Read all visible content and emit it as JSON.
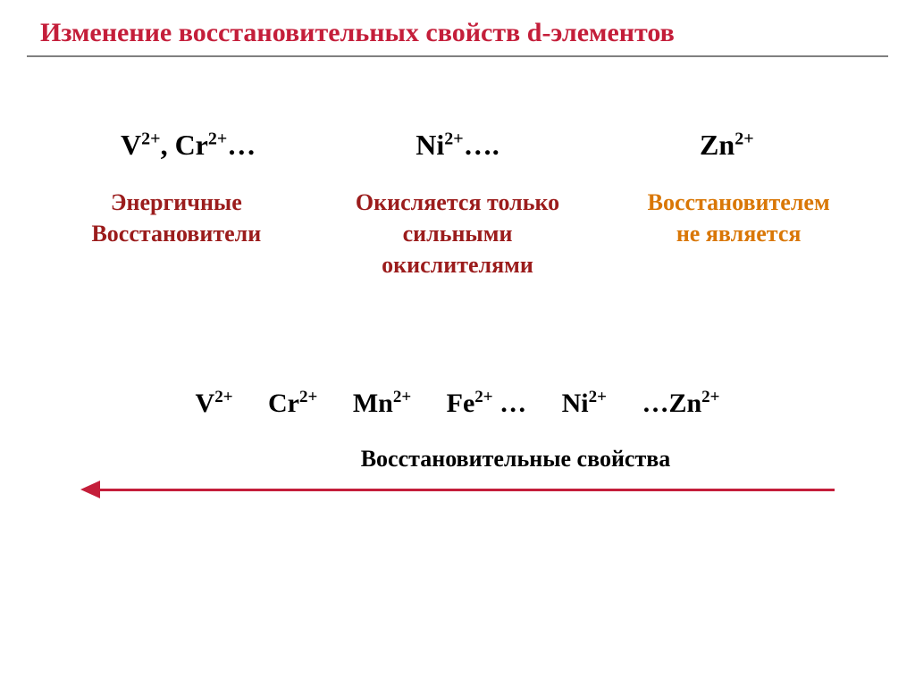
{
  "title": "Изменение восстановительных свойств d-элементов",
  "colors": {
    "title_red": "#c41e3a",
    "dark_red": "#9b1c1c",
    "orange": "#d97706",
    "black": "#000000",
    "divider": "#808080",
    "arrow": "#c41e3a"
  },
  "top_ions": {
    "col1": "V²⁺, Cr²⁺…",
    "col2": "Ni²⁺….",
    "col3": "Zn²⁺"
  },
  "descriptions": {
    "col1_line1": "Энергичные",
    "col1_line2": "Восстановители",
    "col2_line1": "Окисляется только",
    "col2_line2": "сильными",
    "col2_line3": "окислителями",
    "col3_line1": "Восстановителем",
    "col3_line2": "не является"
  },
  "series": {
    "items": [
      "V²⁺",
      "Cr²⁺",
      "Mn²⁺",
      "Fe²⁺ …",
      "Ni²⁺",
      "…Zn²⁺"
    ]
  },
  "arrow_label": "Восстановительные свойства",
  "typography": {
    "title_size": 30,
    "ion_size": 32,
    "description_size": 26,
    "series_size": 30,
    "arrow_label_size": 26
  }
}
